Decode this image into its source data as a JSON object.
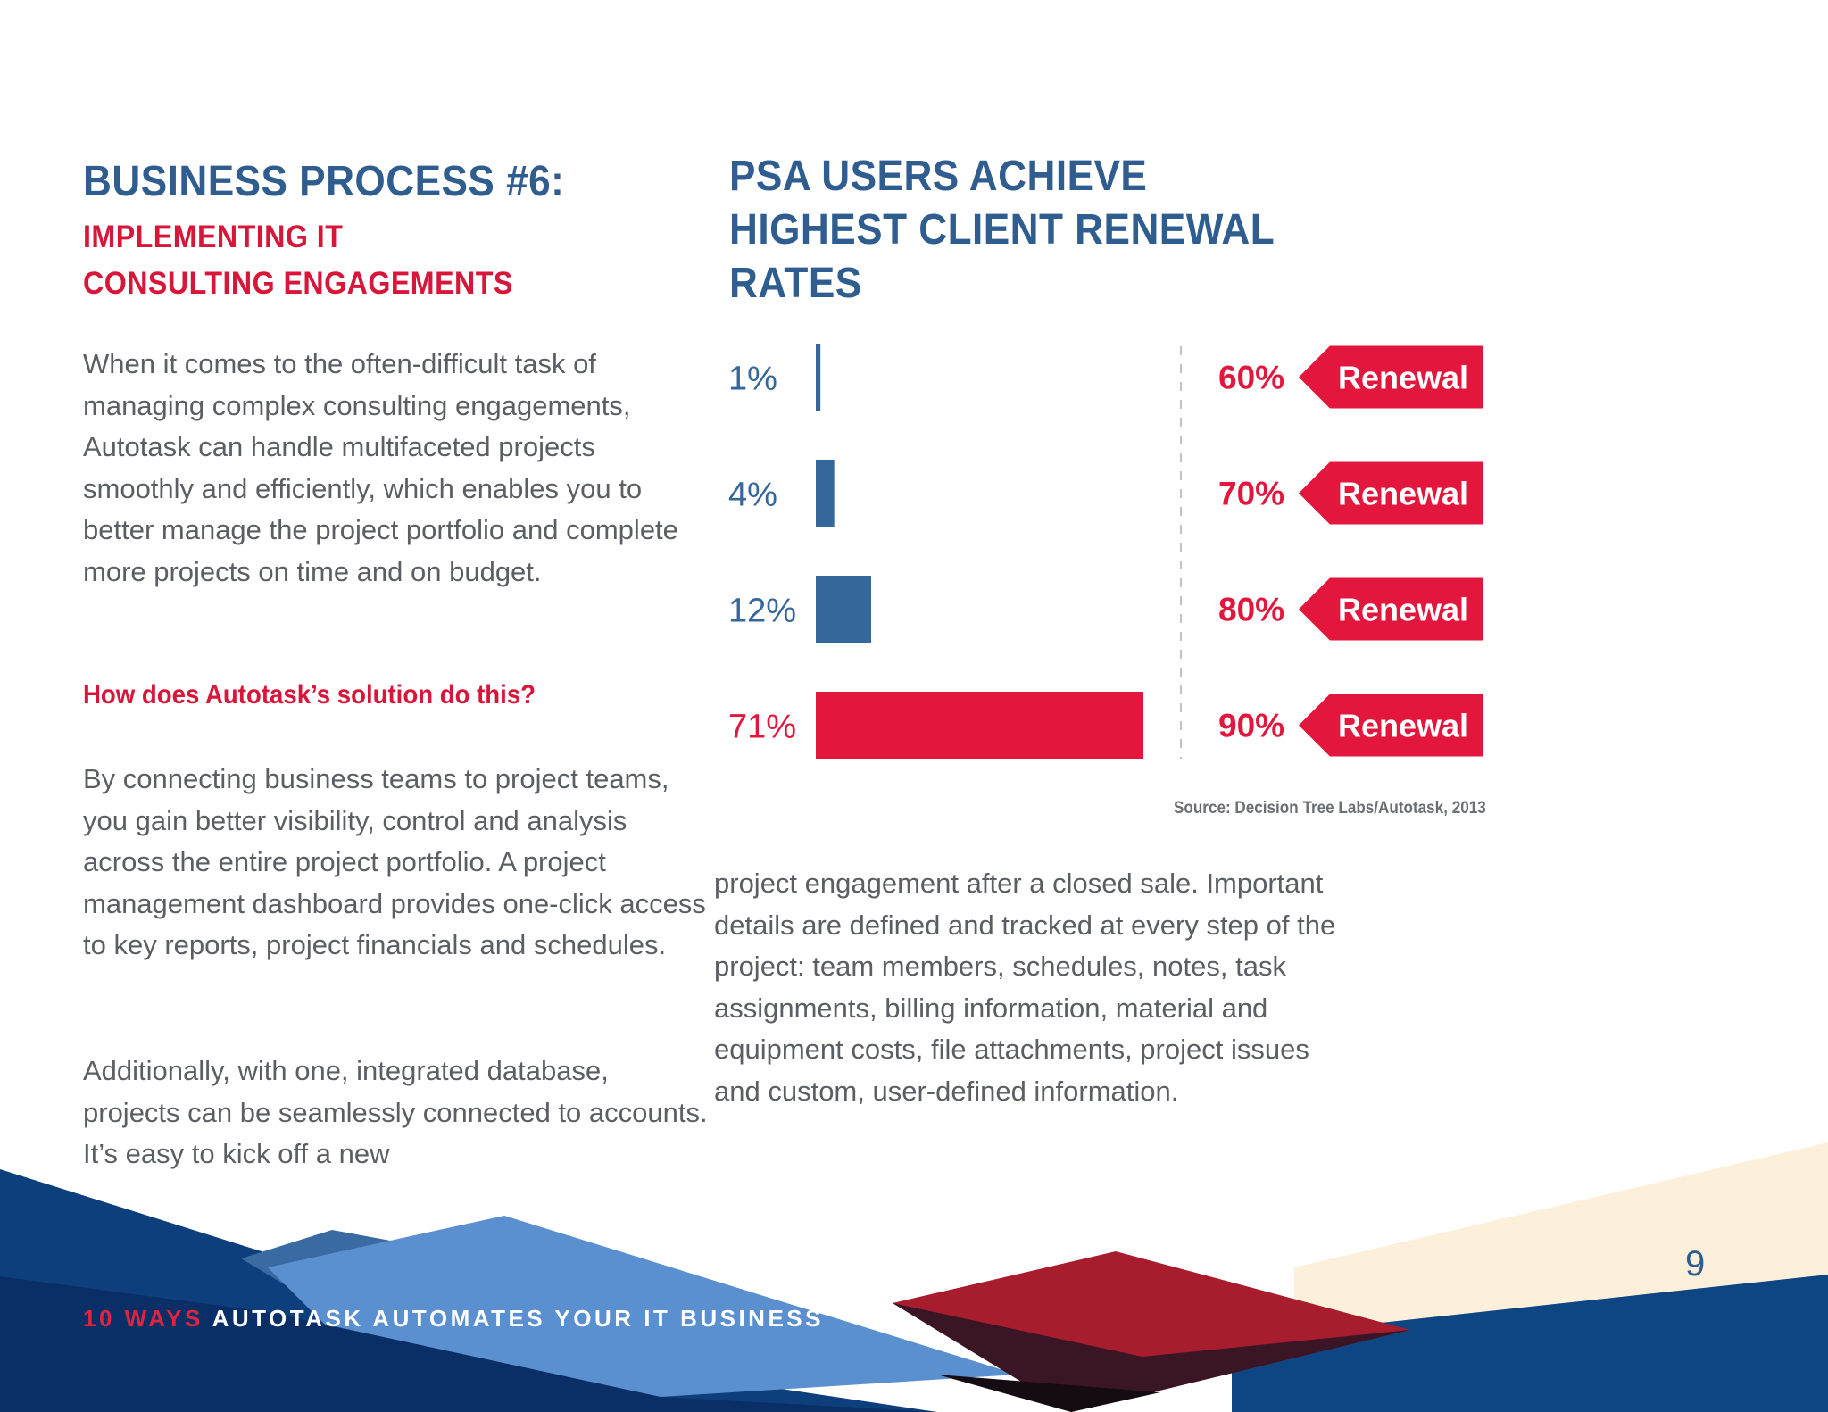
{
  "left": {
    "title": "BUSINESS PROCESS #6:",
    "subtitle": "IMPLEMENTING IT CONSULTING ENGAGEMENTS",
    "paragraph_1": "When it comes to the often-difficult task of managing complex consulting engagements, Autotask can handle multifaceted projects smoothly and efficiently, which enables you to better manage the project portfolio and complete more projects on time and on budget.",
    "question": "How does Autotask’s solution do this?",
    "paragraph_2": "By connecting business teams to project teams, you gain better visibility, control and analysis across the entire project portfolio. A project management dashboard provides one-click access to key reports, project financials and schedules.",
    "paragraph_3": "Additionally, with one, integrated database, projects can be seamlessly connected to accounts. It’s easy to kick off a new"
  },
  "right": {
    "paragraph_4": "project engagement after a closed sale. Important details are defined and tracked at every step of the project: team members, schedules, notes, task assignments, billing information, material and equipment costs, file attachments, project issues and custom, user-defined information."
  },
  "chart_data": {
    "type": "bar",
    "title": "PSA USERS ACHIEVE HIGHEST CLIENT RENEWAL RATES",
    "orientation": "horizontal",
    "categories": [
      "60% Renewal",
      "70% Renewal",
      "80% Renewal",
      "90% Renewal"
    ],
    "values": [
      1,
      4,
      12,
      71
    ],
    "value_labels": [
      "1%",
      "4%",
      "12%",
      "71%"
    ],
    "renewal_rates": [
      "60%",
      "70%",
      "80%",
      "90%"
    ],
    "tag_label": "Renewal",
    "source": "Source: Decision Tree Labs/Autotask, 2013",
    "colors": {
      "primary": "#36679a",
      "highlight": "#e3173d"
    },
    "highlight_index": 3
  },
  "footer": {
    "accent": "10 WAYS",
    "rest": " AUTOTASK AUTOMATES YOUR IT BUSINESS",
    "page_number": "9"
  },
  "colors": {
    "heading_blue": "#2f5d8f",
    "accent_red": "#d8163a",
    "body_gray": "#5b5e63"
  }
}
